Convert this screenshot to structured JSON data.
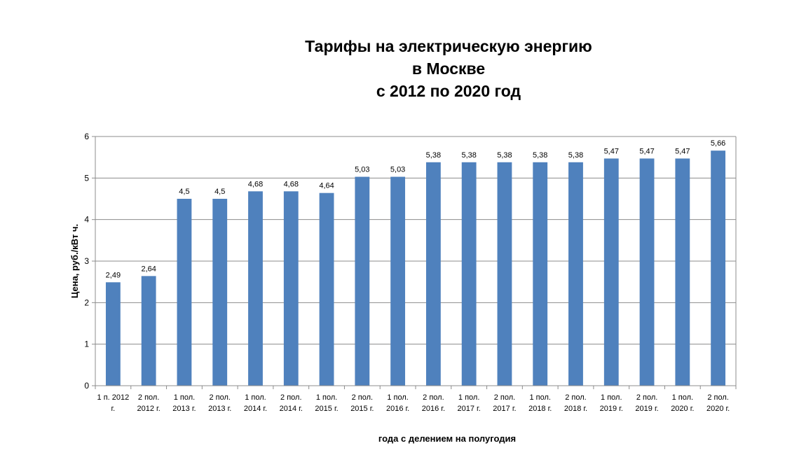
{
  "colors": {
    "bar": "#4f81bd",
    "grid": "#8c8c8c",
    "axis": "#8c8c8c"
  },
  "chart_data": {
    "type": "bar",
    "title": [
      "Тарифы на электрическую энергию",
      "в Москве",
      "с 2012 по 2020 год"
    ],
    "xlabel": "года с делением на полугодия",
    "ylabel": "Цена, руб./кВт ч.",
    "ylim": [
      0,
      6
    ],
    "yticks": [
      "0",
      "1",
      "2",
      "3",
      "4",
      "5",
      "6"
    ],
    "grid": true,
    "legend": "none",
    "categories": [
      [
        "1 п. 2012",
        "г."
      ],
      [
        "2 пол.",
        "2012 г."
      ],
      [
        "1 пол.",
        "2013 г."
      ],
      [
        "2 пол.",
        "2013 г."
      ],
      [
        "1 пол.",
        "2014 г."
      ],
      [
        "2 пол.",
        "2014 г."
      ],
      [
        "1 пол.",
        "2015 г."
      ],
      [
        "2 пол.",
        "2015 г."
      ],
      [
        "1 пол.",
        "2016 г."
      ],
      [
        "2 пол.",
        "2016 г."
      ],
      [
        "1 пол.",
        "2017 г."
      ],
      [
        "2 пол.",
        "2017 г."
      ],
      [
        "1 пол.",
        "2018 г."
      ],
      [
        "2 пол.",
        "2018 г."
      ],
      [
        "1 пол.",
        "2019 г."
      ],
      [
        "2 пол.",
        "2019 г."
      ],
      [
        "1 пол.",
        "2020 г."
      ],
      [
        "2 пол.",
        "2020 г."
      ]
    ],
    "values": [
      2.49,
      2.64,
      4.5,
      4.5,
      4.68,
      4.68,
      4.64,
      5.03,
      5.03,
      5.38,
      5.38,
      5.38,
      5.38,
      5.38,
      5.47,
      5.47,
      5.47,
      5.66
    ],
    "value_labels": [
      "2,49",
      "2,64",
      "4,5",
      "4,5",
      "4,68",
      "4,68",
      "4,64",
      "5,03",
      "5,03",
      "5,38",
      "5,38",
      "5,38",
      "5,38",
      "5,38",
      "5,47",
      "5,47",
      "5,47",
      "5,66"
    ]
  }
}
